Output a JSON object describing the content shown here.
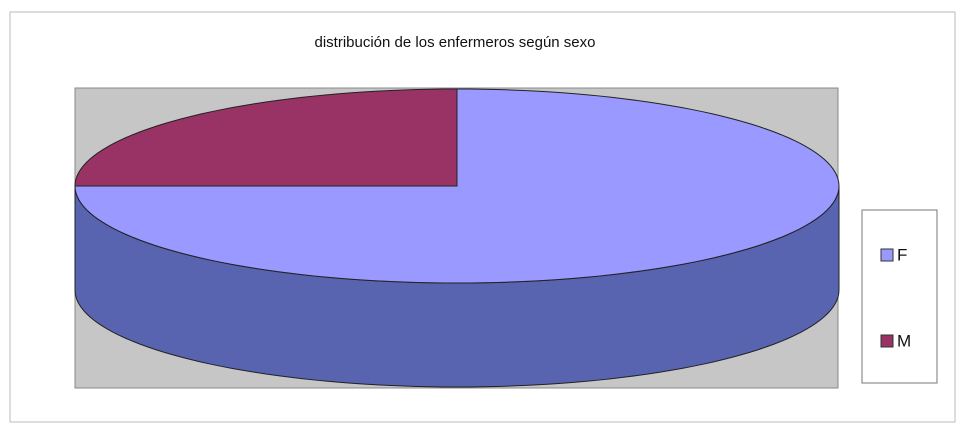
{
  "chart_data": {
    "type": "pie",
    "title": "distribución de los enfermeros según sexo",
    "categories": [
      "F",
      "M"
    ],
    "values": [
      75,
      25
    ],
    "colors": [
      "#9999ff",
      "#993366"
    ],
    "side_colors": [
      "#5864b0",
      "#6e2248"
    ],
    "legend": "right",
    "three_d": true
  }
}
